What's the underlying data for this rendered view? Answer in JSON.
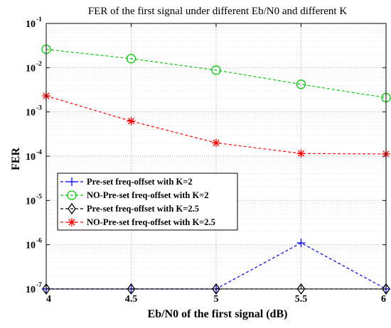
{
  "chart_data": {
    "type": "line",
    "title": "FER of the first signal under different Eb/N0 and different K",
    "xlabel": "Eb/N0 of the first signal (dB)",
    "ylabel": "FER",
    "x": [
      4,
      4.5,
      5,
      5.5,
      6
    ],
    "x_tick_labels": [
      "4",
      "4.5",
      "5",
      "5.5",
      "6"
    ],
    "xlim": [
      4,
      6
    ],
    "ylim": [
      1e-07,
      0.1
    ],
    "y_scale": "log",
    "y_ticks": [
      {
        "base": "10",
        "exp": "-7"
      },
      {
        "base": "10",
        "exp": "-6"
      },
      {
        "base": "10",
        "exp": "-5"
      },
      {
        "base": "10",
        "exp": "-4"
      },
      {
        "base": "10",
        "exp": "-3"
      },
      {
        "base": "10",
        "exp": "-2"
      },
      {
        "base": "10",
        "exp": "-1"
      }
    ],
    "grid": true,
    "legend_position": "lower-left",
    "series": [
      {
        "name": "Pre-set freq-offset with K=2",
        "color": "#0000ff",
        "marker": "plus",
        "linestyle": "dashed",
        "values": [
          1e-07,
          1e-07,
          1e-07,
          1.1e-06,
          1e-07
        ]
      },
      {
        "name": "NO-Pre-set freq-offset with K=2",
        "color": "#00cc00",
        "marker": "circle",
        "linestyle": "dashed",
        "values": [
          0.026,
          0.016,
          0.0088,
          0.0042,
          0.0021
        ]
      },
      {
        "name": "Pre-set freq-offset with K=2.5",
        "color": "#000000",
        "marker": "diamond",
        "linestyle": "dashed",
        "values": [
          1e-07,
          1e-07,
          1e-07,
          1e-07,
          1e-07
        ]
      },
      {
        "name": "NO-Pre-set freq-offset with K=2.5",
        "color": "#ff0000",
        "marker": "asterisk",
        "linestyle": "dashed",
        "values": [
          0.0023,
          0.00062,
          0.0002,
          0.000115,
          0.000112
        ]
      }
    ]
  }
}
